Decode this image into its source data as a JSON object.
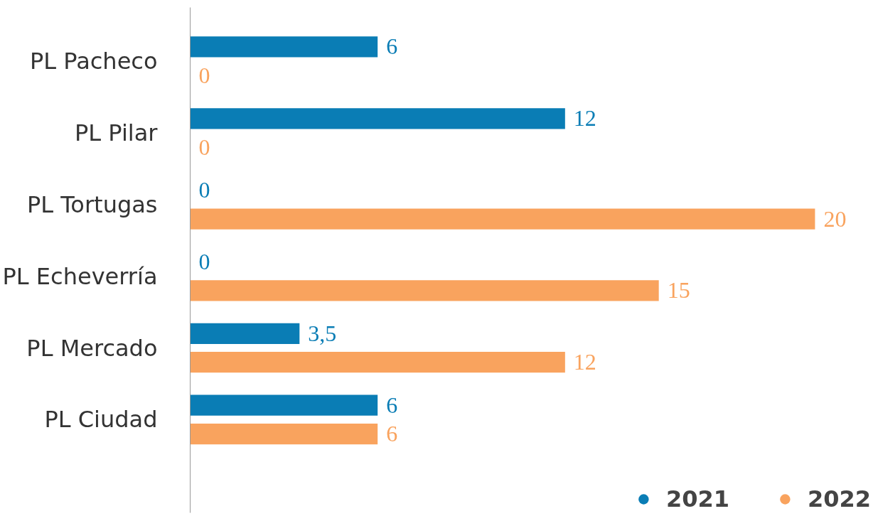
{
  "chart_data": {
    "type": "bar",
    "orientation": "horizontal",
    "categories": [
      "PL Pacheco",
      "PL Pilar",
      "PL Tortugas",
      "PL Echeverría",
      "PL Mercado",
      "PL Ciudad"
    ],
    "series": [
      {
        "name": "2021",
        "color": "#0a7db5",
        "values": [
          6,
          12,
          0,
          0,
          3.5,
          6
        ],
        "value_labels": [
          "6",
          "12",
          "0",
          "0",
          "3,5",
          "6"
        ]
      },
      {
        "name": "2022",
        "color": "#f9a35e",
        "values": [
          0,
          0,
          20,
          15,
          12,
          6
        ],
        "value_labels": [
          "0",
          "0",
          "20",
          "15",
          "12",
          "6"
        ]
      }
    ],
    "legend": "bottom right",
    "grid": false
  }
}
